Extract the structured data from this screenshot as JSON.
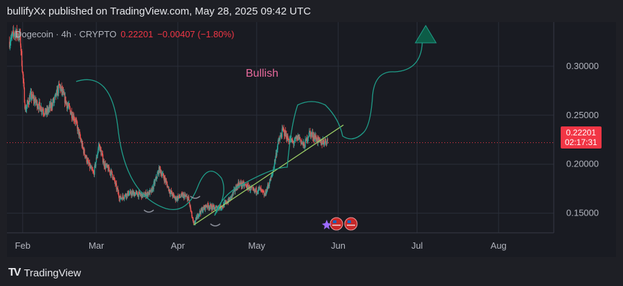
{
  "header": {
    "text": "bullifyXx published on TradingView.com, May 28, 2025 09:42 UTC"
  },
  "legend": {
    "symbol": "Dogecoin · 4h · CRYPTO",
    "price": "0.22201",
    "change": "−0.00407 (−1.80%)"
  },
  "annotation": {
    "text": "Bullish"
  },
  "price_tag": {
    "price": "0.22201",
    "countdown": "02:17:31"
  },
  "footer": {
    "brand": "TradingView",
    "logo": "tradingview-logo-icon"
  },
  "colors": {
    "up": "#26a69a",
    "down": "#ef5350",
    "trendline": "#9ccc65",
    "curve": "#1f9e8a",
    "arrow": "#0d5c47",
    "priceline": "#f23645"
  },
  "chart_data": {
    "type": "candlestick",
    "title": "",
    "xlabel": "",
    "ylabel": "",
    "x_tick_labels": [
      "Feb",
      "Mar",
      "Apr",
      "May",
      "Jun",
      "Jul",
      "Aug"
    ],
    "y_tick_labels": [
      "0.15000",
      "0.20000",
      "0.25000",
      "0.30000"
    ],
    "ylim": [
      0.13,
      0.345
    ],
    "xlim": [
      "2025-01-26",
      "2025-08-22"
    ],
    "last_price": 0.22201,
    "grid": true,
    "price_path": [
      [
        "2025-01-27",
        0.325
      ],
      [
        "2025-01-29",
        0.335
      ],
      [
        "2025-01-31",
        0.33
      ],
      [
        "2025-02-02",
        0.255
      ],
      [
        "2025-02-04",
        0.27
      ],
      [
        "2025-02-07",
        0.26
      ],
      [
        "2025-02-10",
        0.252
      ],
      [
        "2025-02-13",
        0.265
      ],
      [
        "2025-02-15",
        0.28
      ],
      [
        "2025-02-18",
        0.26
      ],
      [
        "2025-02-21",
        0.245
      ],
      [
        "2025-02-24",
        0.215
      ],
      [
        "2025-02-26",
        0.2
      ],
      [
        "2025-02-28",
        0.19
      ],
      [
        "2025-03-02",
        0.22
      ],
      [
        "2025-03-04",
        0.2
      ],
      [
        "2025-03-07",
        0.19
      ],
      [
        "2025-03-10",
        0.165
      ],
      [
        "2025-03-13",
        0.17
      ],
      [
        "2025-03-16",
        0.17
      ],
      [
        "2025-03-19",
        0.168
      ],
      [
        "2025-03-22",
        0.172
      ],
      [
        "2025-03-25",
        0.195
      ],
      [
        "2025-03-27",
        0.185
      ],
      [
        "2025-03-29",
        0.172
      ],
      [
        "2025-03-31",
        0.165
      ],
      [
        "2025-04-03",
        0.168
      ],
      [
        "2025-04-05",
        0.165
      ],
      [
        "2025-04-07",
        0.138
      ],
      [
        "2025-04-09",
        0.15
      ],
      [
        "2025-04-12",
        0.158
      ],
      [
        "2025-04-15",
        0.155
      ],
      [
        "2025-04-18",
        0.157
      ],
      [
        "2025-04-21",
        0.165
      ],
      [
        "2025-04-24",
        0.18
      ],
      [
        "2025-04-27",
        0.178
      ],
      [
        "2025-04-30",
        0.172
      ],
      [
        "2025-05-02",
        0.175
      ],
      [
        "2025-05-04",
        0.168
      ],
      [
        "2025-05-07",
        0.19
      ],
      [
        "2025-05-09",
        0.22
      ],
      [
        "2025-05-11",
        0.235
      ],
      [
        "2025-05-13",
        0.225
      ],
      [
        "2025-05-15",
        0.222
      ],
      [
        "2025-05-17",
        0.228
      ],
      [
        "2025-05-19",
        0.218
      ],
      [
        "2025-05-21",
        0.232
      ],
      [
        "2025-05-23",
        0.228
      ],
      [
        "2025-05-25",
        0.222
      ],
      [
        "2025-05-28",
        0.2241
      ]
    ],
    "trendline": [
      [
        "2025-04-07",
        0.138
      ],
      [
        "2025-06-03",
        0.24
      ]
    ],
    "projection": [
      [
        "2025-05-24",
        0.222
      ],
      [
        "2025-05-31",
        0.21
      ],
      [
        "2025-06-03",
        0.24
      ],
      [
        "2025-06-03",
        0.28
      ],
      [
        "2025-06-08",
        0.29
      ],
      [
        "2025-06-12",
        0.295
      ],
      [
        "2025-06-14",
        0.32
      ]
    ]
  }
}
